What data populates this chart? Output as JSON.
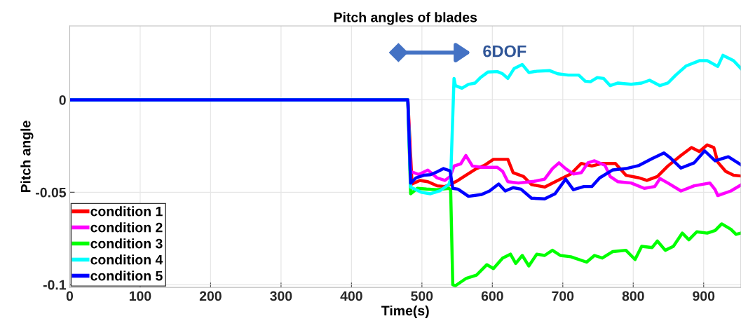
{
  "chart_data": {
    "type": "line",
    "title": "Pitch angles of blades",
    "xlabel": "Time(s)",
    "ylabel": "Pitch angle",
    "xlim": [
      0,
      953
    ],
    "ylim": [
      -0.1015,
      0.04
    ],
    "xticks": [
      0,
      100,
      200,
      300,
      400,
      500,
      600,
      700,
      800,
      900
    ],
    "yticks": [
      0,
      -0.05,
      -0.1
    ],
    "grid": true,
    "legend": "bottom left",
    "line_style": "solid",
    "marker": "none",
    "annotations": [
      "6DOF"
    ],
    "series": [
      {
        "name": "condition 1",
        "color": "#ff0000",
        "x": [
          0,
          480,
          486,
          497.2,
          508.4,
          521.4,
          532.6,
          540,
          551.2,
          562.4,
          577.3,
          588.5,
          601.5,
          622,
          629.5,
          644.3,
          655.5,
          674.2,
          692.8,
          711.4,
          726.3,
          741.2,
          756.1,
          774.7,
          789.6,
          808.2,
          819.4,
          834.3,
          849.2,
          867.8,
          882.7,
          893.9,
          905,
          914.4,
          920,
          931.2,
          942.4,
          952.8
        ],
        "values": [
          0,
          0,
          -0.0455,
          -0.0436,
          -0.0443,
          -0.0465,
          -0.0469,
          -0.0458,
          -0.0436,
          -0.0408,
          -0.0372,
          -0.0355,
          -0.0322,
          -0.0322,
          -0.0394,
          -0.0415,
          -0.0458,
          -0.0472,
          -0.0436,
          -0.0401,
          -0.0344,
          -0.0358,
          -0.0344,
          -0.0344,
          -0.0408,
          -0.0422,
          -0.0436,
          -0.0415,
          -0.0358,
          -0.0301,
          -0.0258,
          -0.028,
          -0.0244,
          -0.0258,
          -0.0337,
          -0.0387,
          -0.0408,
          -0.0412
        ]
      },
      {
        "name": "condition 2",
        "color": "#ff00ff",
        "x": [
          0,
          480,
          484,
          495.4,
          508.4,
          521.4,
          532.6,
          540,
          545.6,
          555,
          562.4,
          571.7,
          584.8,
          607,
          614.6,
          622,
          637,
          659.2,
          674.2,
          685.3,
          694.6,
          704,
          715,
          726.3,
          735.6,
          745,
          760,
          767.3,
          778.4,
          797,
          815.7,
          830.6,
          838,
          849.2,
          867.8,
          886.5,
          908.8,
          916.3,
          920,
          938.6,
          952.8
        ],
        "values": [
          0,
          0,
          -0.0387,
          -0.0404,
          -0.038,
          -0.0422,
          -0.0436,
          -0.0415,
          -0.0358,
          -0.0347,
          -0.0301,
          -0.0358,
          -0.0365,
          -0.0365,
          -0.0387,
          -0.0443,
          -0.045,
          -0.0441,
          -0.0429,
          -0.0372,
          -0.0341,
          -0.0372,
          -0.0401,
          -0.0394,
          -0.0341,
          -0.033,
          -0.0355,
          -0.0415,
          -0.0443,
          -0.045,
          -0.0479,
          -0.0469,
          -0.0426,
          -0.045,
          -0.0493,
          -0.0465,
          -0.045,
          -0.0486,
          -0.0518,
          -0.0493,
          -0.0461
        ]
      },
      {
        "name": "condition 3",
        "color": "#00ff00",
        "x": [
          0,
          480,
          484,
          493.5,
          506.5,
          521.4,
          538.2,
          540.8,
          543.8,
          547.5,
          562.4,
          577.3,
          592.2,
          601.5,
          614.6,
          625.7,
          633.2,
          642.5,
          651.8,
          663,
          674.2,
          685.3,
          696.5,
          711.4,
          733.8,
          745,
          756.1,
          771,
          789.6,
          802.6,
          812,
          826.9,
          834.3,
          845.5,
          857,
          869.7,
          879,
          890.2,
          905,
          916.3,
          925.6,
          938.6,
          946,
          952.8
        ],
        "values": [
          0,
          0,
          -0.0508,
          -0.0479,
          -0.0483,
          -0.0486,
          -0.0479,
          -0.0486,
          -0.1,
          -0.1006,
          -0.0967,
          -0.0949,
          -0.0892,
          -0.0913,
          -0.0856,
          -0.0835,
          -0.0885,
          -0.0842,
          -0.0899,
          -0.0835,
          -0.0842,
          -0.0814,
          -0.0842,
          -0.0849,
          -0.0878,
          -0.0842,
          -0.0856,
          -0.0821,
          -0.0814,
          -0.0864,
          -0.0793,
          -0.0799,
          -0.0764,
          -0.0814,
          -0.0793,
          -0.0721,
          -0.0757,
          -0.0714,
          -0.0721,
          -0.0707,
          -0.0671,
          -0.07,
          -0.0728,
          -0.0721
        ]
      },
      {
        "name": "condition 4",
        "color": "#00ffff",
        "x": [
          0,
          480,
          484,
          499,
          512.1,
          525.2,
          538.2,
          540.8,
          545.6,
          547.5,
          556.8,
          566,
          575.4,
          583,
          594,
          607,
          614.6,
          622,
          631,
          642.5,
          651.8,
          663,
          681.6,
          692.8,
          707.7,
          722.6,
          731.9,
          739.3,
          748.6,
          758,
          767.3,
          778.4,
          797,
          812,
          823.2,
          838,
          849.2,
          860.4,
          875.3,
          893.9,
          905,
          920,
          927.4,
          942.4,
          952.8
        ],
        "values": [
          0,
          0,
          -0.0472,
          -0.05,
          -0.0508,
          -0.0493,
          -0.0458,
          -0.043,
          0.0116,
          0.0077,
          0.0063,
          0.0084,
          0.0091,
          0.012,
          0.0151,
          0.0153,
          0.0141,
          0.0116,
          0.017,
          0.0191,
          0.0148,
          0.0155,
          0.0158,
          0.0141,
          0.0134,
          0.0134,
          0.0101,
          0.0098,
          0.012,
          0.0116,
          0.0077,
          0.0091,
          0.0084,
          0.0091,
          0.0106,
          0.0077,
          0.0091,
          0.0134,
          0.0184,
          0.0212,
          0.0212,
          0.0181,
          0.0241,
          0.0212,
          0.017
        ]
      },
      {
        "name": "condition 5",
        "color": "#0000ff",
        "x": [
          0,
          480,
          484,
          491.6,
          502.8,
          512.1,
          521.4,
          530.7,
          540,
          543.8,
          551.2,
          566.1,
          584.8,
          596,
          609,
          618.3,
          629.5,
          640.6,
          655.5,
          674.2,
          689,
          704,
          715,
          730,
          741.2,
          752.4,
          771,
          789.6,
          808.2,
          826.9,
          843.6,
          853,
          867.8,
          886.5,
          901.4,
          916.3,
          935,
          952.8
        ],
        "values": [
          0,
          0,
          -0.0451,
          -0.0422,
          -0.0408,
          -0.0405,
          -0.039,
          -0.0372,
          -0.0384,
          -0.0479,
          -0.0483,
          -0.0522,
          -0.0512,
          -0.0493,
          -0.0455,
          -0.0493,
          -0.0475,
          -0.0483,
          -0.0532,
          -0.0536,
          -0.0508,
          -0.0429,
          -0.0486,
          -0.0469,
          -0.0469,
          -0.0422,
          -0.0379,
          -0.0372,
          -0.0355,
          -0.0318,
          -0.0287,
          -0.0315,
          -0.0369,
          -0.0341,
          -0.0276,
          -0.033,
          -0.0308,
          -0.0351
        ]
      }
    ]
  }
}
